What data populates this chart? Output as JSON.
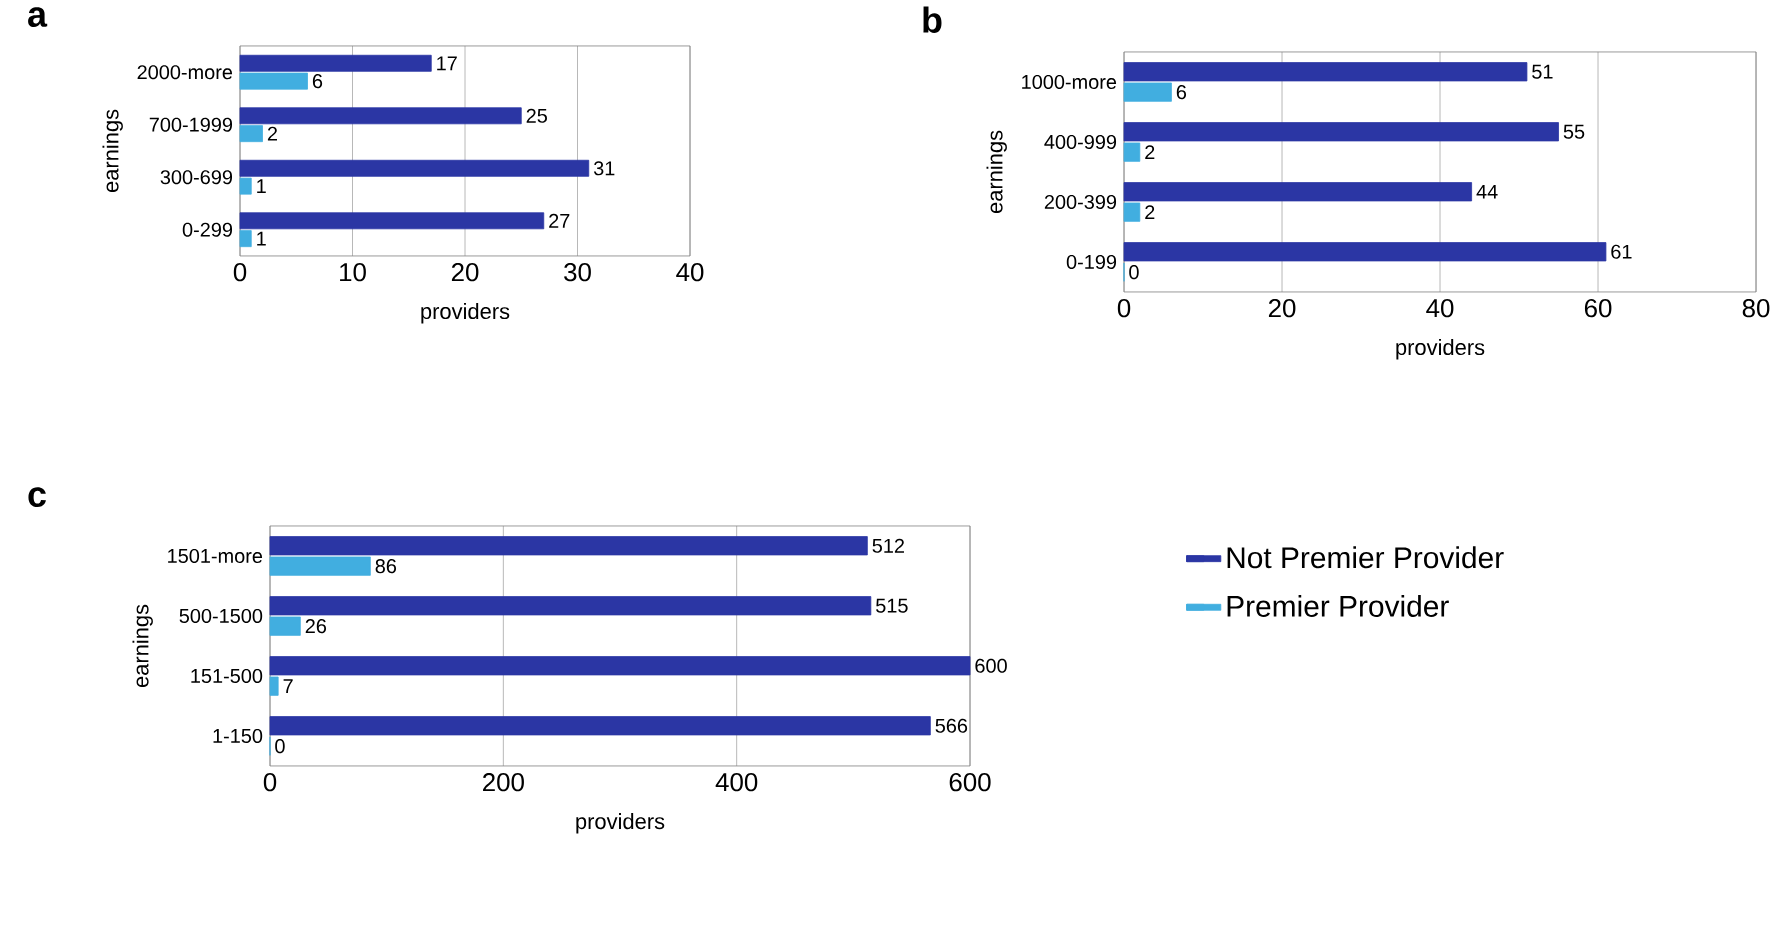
{
  "chart_data": [
    {
      "type": "bar",
      "orientation": "horizontal",
      "title": "a",
      "xlabel": "providers",
      "ylabel": "earnings",
      "categories": [
        "2000-more",
        "700-1999",
        "300-699",
        "0-299"
      ],
      "series": [
        {
          "color": "#2b36a4",
          "values": [
            17,
            25,
            31,
            27
          ]
        },
        {
          "color": "#41aee0",
          "values": [
            6,
            2,
            1,
            1
          ]
        }
      ],
      "xlim": [
        0,
        40
      ],
      "xticks": [
        0,
        10,
        20,
        30,
        40
      ],
      "grid": "x",
      "data_labels": true
    },
    {
      "type": "bar",
      "orientation": "horizontal",
      "title": "b",
      "xlabel": "providers",
      "ylabel": "earnings",
      "categories": [
        "1000-more",
        "400-999",
        "200-399",
        "0-199"
      ],
      "series": [
        {
          "color": "#2b36a4",
          "values": [
            51,
            55,
            44,
            61
          ]
        },
        {
          "color": "#41aee0",
          "values": [
            6,
            2,
            2,
            0
          ]
        }
      ],
      "xlim": [
        0,
        80
      ],
      "xticks": [
        0,
        20,
        40,
        60,
        80
      ],
      "grid": "x",
      "data_labels": true
    },
    {
      "type": "bar",
      "orientation": "horizontal",
      "title": "c",
      "xlabel": "providers",
      "ylabel": "earnings",
      "categories": [
        "1501-more",
        "500-1500",
        "151-500",
        "1-150"
      ],
      "series": [
        {
          "name": "Not Premier Provider",
          "color": "#2b36a4",
          "values": [
            512,
            515,
            600,
            566
          ]
        },
        {
          "name": "Premier Provider",
          "color": "#41aee0",
          "values": [
            86,
            26,
            7,
            0
          ]
        }
      ],
      "xlim": [
        0,
        600
      ],
      "xticks": [
        0,
        200,
        400,
        600
      ],
      "grid": "x",
      "data_labels": true,
      "legend": "right"
    }
  ]
}
